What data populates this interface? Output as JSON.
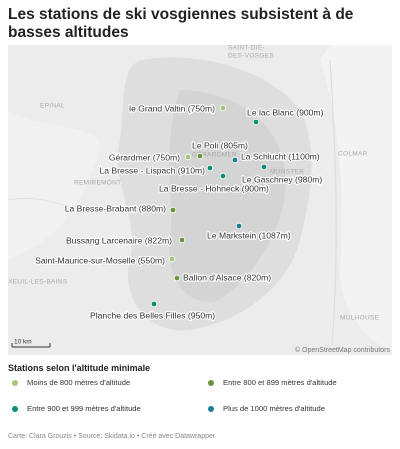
{
  "title": "Les stations de ski vosgiennes subsistent à de basses altitudes",
  "map": {
    "places": [
      "SAINT-DIÉ-",
      "DES-VOSGES",
      "EPINAL",
      "COLMAR",
      "REMIREMONT",
      "MUNSTER",
      "MULHOUSE",
      "XEUIL-LES-BAINS",
      "GÉRARDMER"
    ],
    "scale": "10 km",
    "attribution": "© OpenStreetMap contributors"
  },
  "stations": [
    {
      "label": "le Grand Valtin (750m)",
      "category": 0
    },
    {
      "label": "Le lac Blanc (900m)",
      "category": 2
    },
    {
      "label": "Le Poli (805m)",
      "category": 1
    },
    {
      "label": "Gérardmer (750m)",
      "category": 0
    },
    {
      "label": "La Schlucht (1100m)",
      "category": 3
    },
    {
      "label": "La Bresse - Lispach (910m)",
      "category": 2
    },
    {
      "label": "Le Gaschney (980m)",
      "category": 2
    },
    {
      "label": "La Bresse - Hohneck (900m)",
      "category": 2
    },
    {
      "label": "La Bresse-Brabant (880m)",
      "category": 1
    },
    {
      "label": "Le Markstein (1087m)",
      "category": 3
    },
    {
      "label": "Bussang Larcenaire (822m)",
      "category": 1
    },
    {
      "label": "Saint-Maurice-sur-Moselle (550m)",
      "category": 0
    },
    {
      "label": "Ballon d'Alsace (820m)",
      "category": 1
    },
    {
      "label": "Planche des Belles Filles (950m)",
      "category": 2
    }
  ],
  "legend": {
    "title": "Stations selon l'altitude minimale",
    "items": [
      {
        "label": "Moins de 800 mètres d'altitude",
        "color": "#a6c47c"
      },
      {
        "label": "Entre 800 et 899 mètres d'altitude",
        "color": "#6a9440"
      },
      {
        "label": "Entre 900 et 999 mètres d'altitude",
        "color": "#0c8f7a"
      },
      {
        "label": "Plus de 1000 mètres d'altitude",
        "color": "#1d7f94"
      }
    ]
  },
  "footer": "Carte: Clara Grouzis • Source: Skidata.io • Créé avec Datawrapper"
}
